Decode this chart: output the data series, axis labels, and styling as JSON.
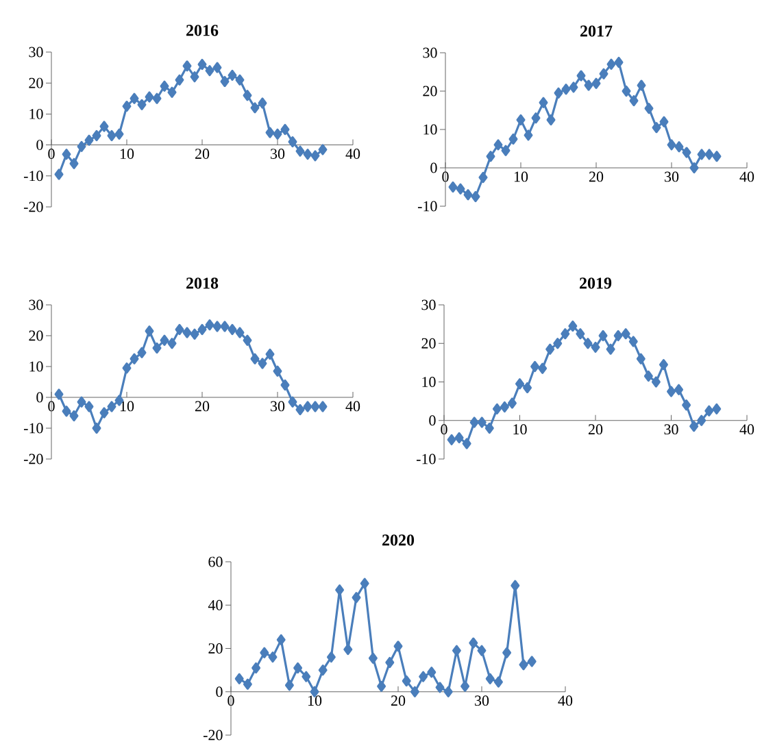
{
  "chart_data": [
    {
      "type": "line",
      "title": "2016",
      "color": "#4a7ebb",
      "marker": "diamond",
      "xlim": [
        0,
        40
      ],
      "xticks": [
        0,
        10,
        20,
        30,
        40
      ],
      "ylim": [
        -20,
        30
      ],
      "yticks": [
        -20,
        -10,
        0,
        10,
        20,
        30
      ],
      "x": [
        1,
        2,
        3,
        4,
        5,
        6,
        7,
        8,
        9,
        10,
        11,
        12,
        13,
        14,
        15,
        16,
        17,
        18,
        19,
        20,
        21,
        22,
        23,
        24,
        25,
        26,
        27,
        28,
        29,
        30,
        31,
        32,
        33,
        34,
        35,
        36
      ],
      "values": [
        -9.5,
        -3,
        -6,
        -0.5,
        1.5,
        3,
        6,
        3,
        3.5,
        12.5,
        15,
        13,
        15.5,
        15,
        19,
        17,
        21,
        25.5,
        22,
        26,
        24,
        25,
        20.5,
        22.5,
        21,
        16,
        12,
        13.5,
        4,
        3.5,
        5,
        1,
        -2,
        -3,
        -3.5,
        -1.5
      ]
    },
    {
      "type": "line",
      "title": "2017",
      "color": "#4a7ebb",
      "marker": "diamond",
      "xlim": [
        0,
        40
      ],
      "xticks": [
        0,
        10,
        20,
        30,
        40
      ],
      "ylim": [
        -10,
        30
      ],
      "yticks": [
        -10,
        0,
        10,
        20,
        30
      ],
      "x": [
        1,
        2,
        3,
        4,
        5,
        6,
        7,
        8,
        9,
        10,
        11,
        12,
        13,
        14,
        15,
        16,
        17,
        18,
        19,
        20,
        21,
        22,
        23,
        24,
        25,
        26,
        27,
        28,
        29,
        30,
        31,
        32,
        33,
        34,
        35,
        36
      ],
      "values": [
        -5,
        -5.5,
        -7,
        -7.5,
        -2.5,
        3,
        6,
        4.5,
        7.5,
        12.5,
        8.5,
        13,
        17,
        12.5,
        19.5,
        20.5,
        21,
        24,
        21.5,
        22,
        24.5,
        27,
        27.5,
        20,
        17.5,
        21.5,
        15.5,
        10.5,
        12,
        6,
        5.5,
        4,
        0,
        3.5,
        3.5,
        3
      ]
    },
    {
      "type": "line",
      "title": "2018",
      "color": "#4a7ebb",
      "marker": "diamond",
      "xlim": [
        0,
        40
      ],
      "xticks": [
        0,
        10,
        20,
        30,
        40
      ],
      "ylim": [
        -20,
        30
      ],
      "yticks": [
        -20,
        -10,
        0,
        10,
        20,
        30
      ],
      "x": [
        1,
        2,
        3,
        4,
        5,
        6,
        7,
        8,
        9,
        10,
        11,
        12,
        13,
        14,
        15,
        16,
        17,
        18,
        19,
        20,
        21,
        22,
        23,
        24,
        25,
        26,
        27,
        28,
        29,
        30,
        31,
        32,
        33,
        34,
        35,
        36
      ],
      "values": [
        1,
        -4.5,
        -6,
        -1.5,
        -3,
        -10,
        -5,
        -3,
        -1,
        9.5,
        12.5,
        14.5,
        21.5,
        16,
        18.5,
        17.5,
        22,
        21,
        20.5,
        22,
        23.5,
        23,
        23,
        22,
        21,
        18.5,
        12.5,
        11,
        14,
        8.5,
        4,
        -1.5,
        -4,
        -3,
        -3,
        -3
      ]
    },
    {
      "type": "line",
      "title": "2019",
      "color": "#4a7ebb",
      "marker": "diamond",
      "xlim": [
        0,
        40
      ],
      "xticks": [
        0,
        10,
        20,
        30,
        40
      ],
      "ylim": [
        -10,
        30
      ],
      "yticks": [
        -10,
        0,
        10,
        20,
        30
      ],
      "x": [
        1,
        2,
        3,
        4,
        5,
        6,
        7,
        8,
        9,
        10,
        11,
        12,
        13,
        14,
        15,
        16,
        17,
        18,
        19,
        20,
        21,
        22,
        23,
        24,
        25,
        26,
        27,
        28,
        29,
        30,
        31,
        32,
        33,
        34,
        35,
        36
      ],
      "values": [
        -5,
        -4.5,
        -6,
        -0.5,
        -0.5,
        -2,
        3,
        3.5,
        4.5,
        9.5,
        8.5,
        14,
        13.5,
        18.5,
        20,
        22.5,
        24.5,
        22.5,
        20,
        19,
        22,
        18.5,
        22,
        22.5,
        20.5,
        16,
        11.5,
        10,
        14.5,
        7.5,
        8,
        4,
        -1.5,
        0,
        2.5,
        3
      ]
    },
    {
      "type": "line",
      "title": "2020",
      "color": "#4a7ebb",
      "marker": "diamond",
      "xlim": [
        0,
        40
      ],
      "xticks": [
        0,
        10,
        20,
        30,
        40
      ],
      "ylim": [
        -20,
        60
      ],
      "yticks": [
        -20,
        0,
        20,
        40,
        60
      ],
      "x": [
        1,
        2,
        3,
        4,
        5,
        6,
        7,
        8,
        9,
        10,
        11,
        12,
        13,
        14,
        15,
        16,
        17,
        18,
        19,
        20,
        21,
        22,
        23,
        24,
        25,
        26,
        27,
        28,
        29,
        30,
        31,
        32,
        33,
        34,
        35,
        36
      ],
      "values": [
        6,
        3.5,
        11,
        18,
        16,
        24,
        3,
        11,
        7,
        0,
        10,
        16,
        47,
        19.5,
        43.5,
        50,
        15.5,
        2.5,
        13.5,
        21,
        5,
        0,
        7,
        9,
        2,
        0,
        19,
        2.5,
        22.5,
        19,
        6,
        4.5,
        18,
        49,
        12.5,
        14
      ]
    }
  ]
}
